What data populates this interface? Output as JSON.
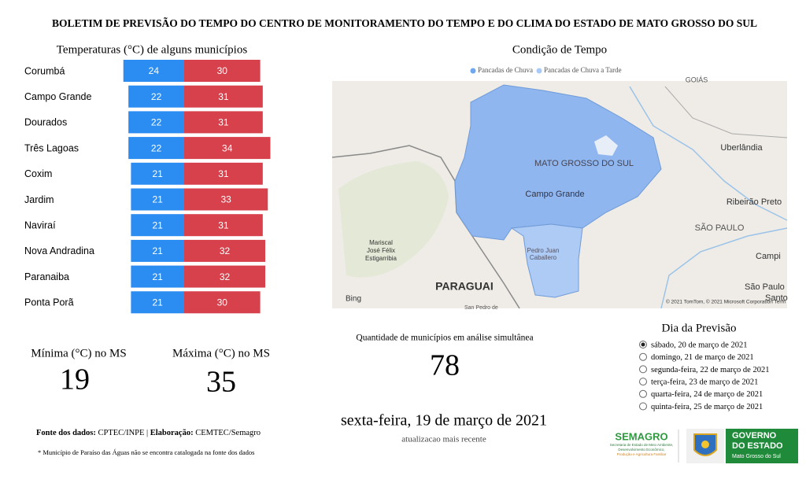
{
  "header": {
    "title": "BOLETIM DE PREVISÃO DO TEMPO DO CENTRO DE MONITORAMENTO DO TEMPO E DO CLIMA DO ESTADO DE MATO GROSSO DO SUL"
  },
  "temperatures": {
    "title": "Temperaturas (°C) de alguns municípios",
    "categories": [
      "Corumbá",
      "Campo Grande",
      "Dourados",
      "Três Lagoas",
      "Coxim",
      "Jardim",
      "Naviraí",
      "Nova Andradina",
      "Paranaiba",
      "Ponta Porã"
    ],
    "series": [
      {
        "color": "#2b8cf2",
        "values": [
          24,
          22,
          22,
          22,
          21,
          21,
          21,
          21,
          21,
          21
        ]
      },
      {
        "color": "#d7414c",
        "values": [
          30,
          31,
          31,
          34,
          31,
          33,
          31,
          32,
          32,
          30
        ]
      }
    ]
  },
  "min_card": {
    "label": "Mínima (°C) no MS",
    "value": 19
  },
  "max_card": {
    "label": "Máxima (°C) no MS",
    "value": 35
  },
  "map": {
    "title": "Condição de Tempo",
    "legend": [
      {
        "name": "Pancadas de Chuva",
        "color": "#6fa8f0"
      },
      {
        "name": "Pancadas de Chuva a Tarde",
        "color": "#a9c9f6"
      }
    ],
    "labels": {
      "state": "MATO GROSSO DO SUL",
      "capital": "Campo Grande",
      "country": "PARAGUAI",
      "goias": "GOIÁS",
      "uberlandia": "Uberlândia",
      "ribeirao": "Ribeirão Preto",
      "sp_state": "SÃO PAULO",
      "campinas": "Campi",
      "sp_city": "São Paulo",
      "santos": "Santo",
      "mariscal": [
        "Mariscal",
        "José Félix",
        "Estigarribia"
      ],
      "pedro": [
        "Pedro Juan",
        "Caballero"
      ],
      "sanpedro": "San Pedro de",
      "bing": "Bing",
      "copyright": "© 2021 TomTom, © 2021 Microsoft Corporation  Term"
    }
  },
  "count_card": {
    "label": "Quantidade de municípios em análise simultânea",
    "value": 78
  },
  "date_card": {
    "date": "sexta-feira, 19 de março de 2021",
    "caption": "atualizacao mais recente"
  },
  "forecast": {
    "title": "Dia da Previsão",
    "options": [
      "sábado, 20 de março de 2021",
      "domingo, 21 de março de 2021",
      "segunda-feira, 22 de março de 2021",
      "terça-feira, 23 de março de 2021",
      "quarta-feira, 24 de março de 2021",
      "quinta-feira, 25 de março de 2021"
    ],
    "selected": 0
  },
  "footer": {
    "source_label": "Fonte dos dados:",
    "source": "CPTEC/INPE | ",
    "credit_label": "Elaboração:",
    "credit": "CEMTEC/Semagro",
    "note": "* Município de Paraíso das Águas não se encontra catalogada na fonte dos dados"
  },
  "logos": {
    "semagro": "SEMAGRO",
    "semagro_sub": [
      "Secretaria de Estado de Meio Ambiente,",
      "Desenvolvimento Econômico,",
      "Produção e Agricultura Familiar"
    ],
    "gov": [
      "GOVERNO",
      "DO ESTADO"
    ],
    "gov_sub": "Mato Grosso do Sul"
  }
}
